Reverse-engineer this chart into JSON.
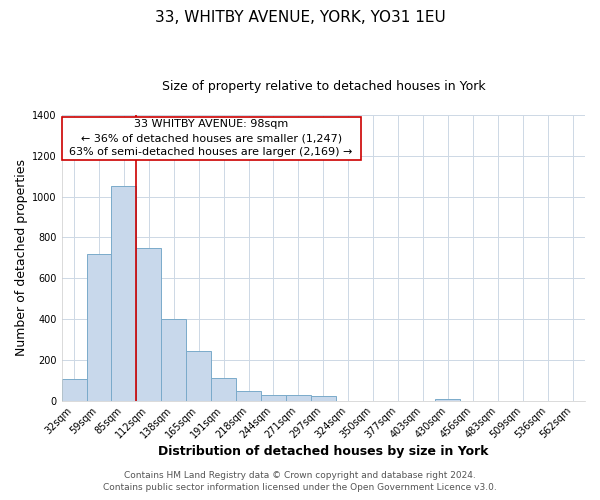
{
  "title": "33, WHITBY AVENUE, YORK, YO31 1EU",
  "subtitle": "Size of property relative to detached houses in York",
  "xlabel": "Distribution of detached houses by size in York",
  "ylabel": "Number of detached properties",
  "bar_color": "#c8d8eb",
  "bar_edge_color": "#7aaaca",
  "bar_width": 1.0,
  "categories": [
    "32sqm",
    "59sqm",
    "85sqm",
    "112sqm",
    "138sqm",
    "165sqm",
    "191sqm",
    "218sqm",
    "244sqm",
    "271sqm",
    "297sqm",
    "324sqm",
    "350sqm",
    "377sqm",
    "403sqm",
    "430sqm",
    "456sqm",
    "483sqm",
    "509sqm",
    "536sqm",
    "562sqm"
  ],
  "values": [
    108,
    720,
    1050,
    748,
    400,
    243,
    110,
    48,
    28,
    25,
    20,
    0,
    0,
    0,
    0,
    10,
    0,
    0,
    0,
    0,
    0
  ],
  "ylim": [
    0,
    1400
  ],
  "yticks": [
    0,
    200,
    400,
    600,
    800,
    1000,
    1200,
    1400
  ],
  "property_line_x": 2.5,
  "property_line_color": "#cc0000",
  "annotation_text": "33 WHITBY AVENUE: 98sqm\n← 36% of detached houses are smaller (1,247)\n63% of semi-detached houses are larger (2,169) →",
  "annotation_box_color": "#ffffff",
  "annotation_box_edge": "#cc0000",
  "footer_line1": "Contains HM Land Registry data © Crown copyright and database right 2024.",
  "footer_line2": "Contains public sector information licensed under the Open Government Licence v3.0.",
  "background_color": "#ffffff",
  "grid_color": "#cdd8e5",
  "title_fontsize": 11,
  "subtitle_fontsize": 9,
  "axis_label_fontsize": 9,
  "tick_fontsize": 7,
  "annotation_fontsize": 8,
  "footer_fontsize": 6.5
}
